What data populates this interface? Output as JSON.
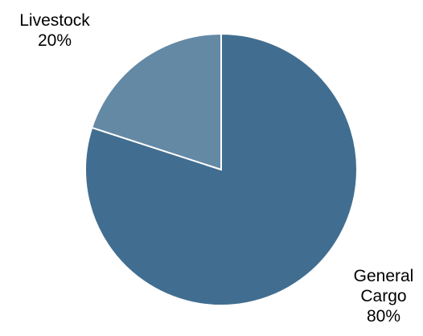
{
  "chart_data": {
    "type": "pie",
    "start_angle_deg": 0,
    "direction": "clockwise",
    "slices": [
      {
        "label_lines": [
          "General",
          "Cargo"
        ],
        "pct_text": "80%",
        "value": 80,
        "color": "#416e90"
      },
      {
        "label_lines": [
          "Livestock"
        ],
        "pct_text": "20%",
        "value": 20,
        "color": "#6489a5"
      }
    ],
    "slice_border_color": "#ffffff"
  }
}
